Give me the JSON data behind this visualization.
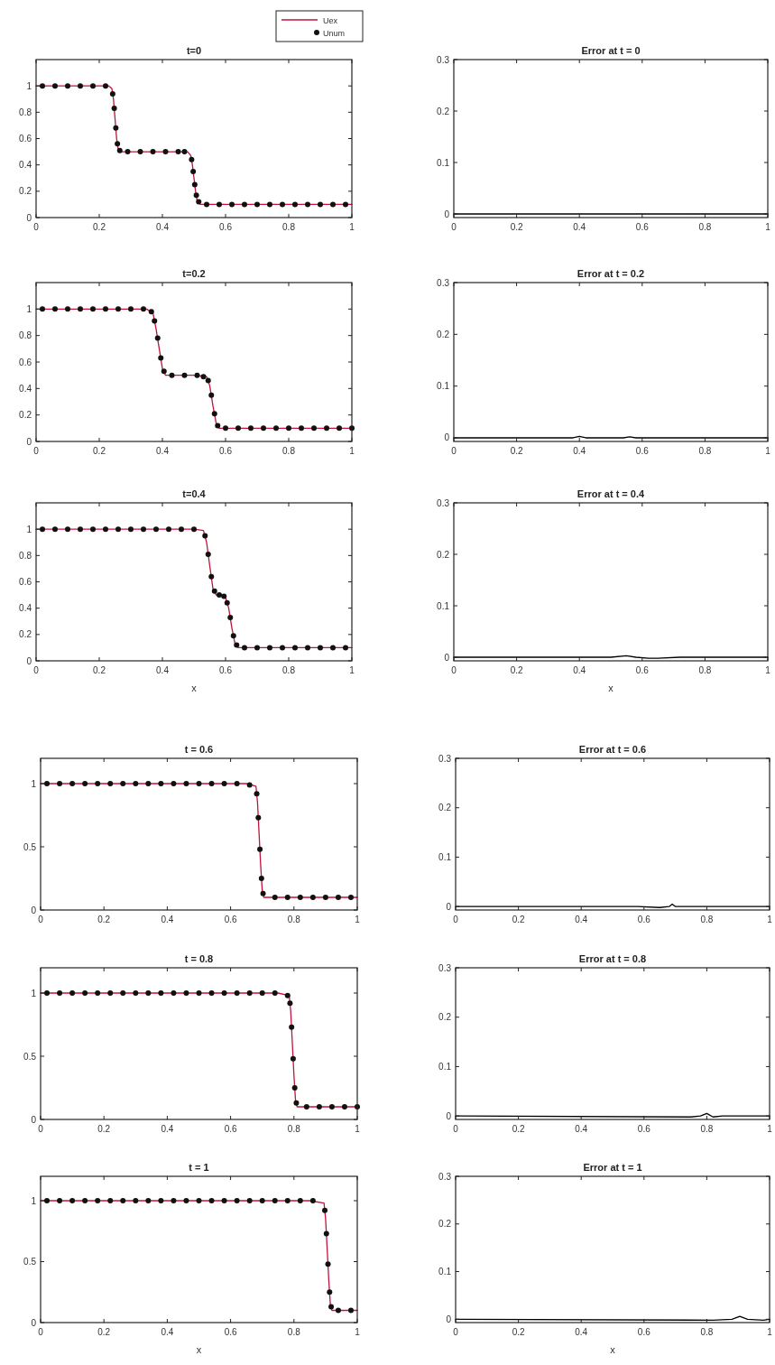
{
  "chart_data": [
    {
      "type": "line",
      "title": "t=0",
      "legend": "top right",
      "xlim": [
        0,
        1
      ],
      "ylim": [
        0,
        1.2
      ],
      "xticks": [
        0,
        0.2,
        0.4,
        0.6,
        0.8,
        1
      ],
      "yticks": [
        0,
        0.2,
        0.4,
        0.6,
        0.8,
        1
      ],
      "x": [
        0,
        0.05,
        0.1,
        0.15,
        0.2,
        0.23,
        0.24,
        0.245,
        0.25,
        0.255,
        0.26,
        0.27,
        0.3,
        0.35,
        0.4,
        0.45,
        0.48,
        0.49,
        0.495,
        0.5,
        0.505,
        0.51,
        0.52,
        0.55,
        0.6,
        0.65,
        0.7,
        0.75,
        0.8,
        0.85,
        0.9,
        0.95,
        1
      ],
      "series": [
        {
          "name": "Uex",
          "color": "#c0143c",
          "values": [
            1,
            1,
            1,
            1,
            1,
            1,
            0.98,
            0.9,
            0.75,
            0.6,
            0.52,
            0.5,
            0.5,
            0.5,
            0.5,
            0.5,
            0.5,
            0.47,
            0.4,
            0.3,
            0.2,
            0.13,
            0.1,
            0.1,
            0.1,
            0.1,
            0.1,
            0.1,
            0.1,
            0.1,
            0.1,
            0.1,
            0.1
          ]
        },
        {
          "name": "Unum",
          "type": "scatter",
          "marker": "circle",
          "color": "#111111",
          "x": [
            0.02,
            0.06,
            0.1,
            0.14,
            0.18,
            0.22,
            0.2425,
            0.2475,
            0.2525,
            0.2575,
            0.265,
            0.29,
            0.33,
            0.37,
            0.41,
            0.45,
            0.47,
            0.4925,
            0.4975,
            0.5025,
            0.5075,
            0.515,
            0.54,
            0.58,
            0.62,
            0.66,
            0.7,
            0.74,
            0.78,
            0.82,
            0.86,
            0.9,
            0.94,
            0.98
          ],
          "values": [
            1,
            1,
            1,
            1,
            1,
            1,
            0.94,
            0.83,
            0.68,
            0.56,
            0.51,
            0.5,
            0.5,
            0.5,
            0.5,
            0.5,
            0.5,
            0.44,
            0.35,
            0.25,
            0.17,
            0.12,
            0.1,
            0.1,
            0.1,
            0.1,
            0.1,
            0.1,
            0.1,
            0.1,
            0.1,
            0.1,
            0.1,
            0.1
          ]
        }
      ]
    },
    {
      "type": "line",
      "title": "Error at t = 0",
      "xlim": [
        0,
        1
      ],
      "ylim": [
        -0.007,
        0.3
      ],
      "xticks": [
        0,
        0.2,
        0.4,
        0.6,
        0.8,
        1
      ],
      "yticks": [
        0,
        0.1,
        0.2,
        0.3
      ],
      "x": [
        0,
        0.25,
        0.5,
        0.75,
        1
      ],
      "series": [
        {
          "color": "#000000",
          "values": [
            0,
            0,
            0,
            0,
            0
          ]
        }
      ]
    },
    {
      "type": "line",
      "title": "t=0.2",
      "xlim": [
        0,
        1
      ],
      "ylim": [
        0,
        1.2
      ],
      "xticks": [
        0,
        0.2,
        0.4,
        0.6,
        0.8,
        1
      ],
      "yticks": [
        0,
        0.2,
        0.4,
        0.6,
        0.8,
        1
      ],
      "x": [
        0,
        0.05,
        0.1,
        0.15,
        0.2,
        0.25,
        0.3,
        0.35,
        0.37,
        0.38,
        0.39,
        0.4,
        0.41,
        0.45,
        0.5,
        0.54,
        0.55,
        0.56,
        0.57,
        0.58,
        0.6,
        0.65,
        0.7,
        0.75,
        0.8,
        0.85,
        0.9,
        0.95,
        1
      ],
      "series": [
        {
          "color": "#c0143c",
          "values": [
            1,
            1,
            1,
            1,
            1,
            1,
            1,
            1,
            0.97,
            0.85,
            0.7,
            0.55,
            0.5,
            0.5,
            0.5,
            0.49,
            0.42,
            0.27,
            0.14,
            0.1,
            0.1,
            0.1,
            0.1,
            0.1,
            0.1,
            0.1,
            0.1,
            0.1,
            0.1
          ]
        },
        {
          "type": "scatter",
          "marker": "circle",
          "color": "#111111",
          "x": [
            0.02,
            0.06,
            0.1,
            0.14,
            0.18,
            0.22,
            0.26,
            0.3,
            0.34,
            0.365,
            0.375,
            0.385,
            0.395,
            0.405,
            0.43,
            0.47,
            0.51,
            0.53,
            0.545,
            0.555,
            0.565,
            0.575,
            0.6,
            0.64,
            0.68,
            0.72,
            0.76,
            0.8,
            0.84,
            0.88,
            0.92,
            0.96,
            1
          ],
          "values": [
            1,
            1,
            1,
            1,
            1,
            1,
            1,
            1,
            1,
            0.98,
            0.91,
            0.78,
            0.63,
            0.53,
            0.5,
            0.5,
            0.5,
            0.49,
            0.46,
            0.35,
            0.21,
            0.12,
            0.1,
            0.1,
            0.1,
            0.1,
            0.1,
            0.1,
            0.1,
            0.1,
            0.1,
            0.1,
            0.1
          ]
        }
      ]
    },
    {
      "type": "line",
      "title": "Error at t = 0.2",
      "xlim": [
        0,
        1
      ],
      "ylim": [
        -0.007,
        0.3
      ],
      "xticks": [
        0,
        0.2,
        0.4,
        0.6,
        0.8,
        1
      ],
      "yticks": [
        0,
        0.1,
        0.2,
        0.3
      ],
      "x": [
        0,
        0.35,
        0.38,
        0.4,
        0.42,
        0.5,
        0.54,
        0.56,
        0.58,
        0.7,
        1
      ],
      "series": [
        {
          "color": "#000000",
          "values": [
            0,
            0,
            0,
            0.003,
            0,
            0,
            0,
            0.002,
            0,
            0,
            0
          ]
        }
      ]
    },
    {
      "type": "line",
      "title": "t=0.4",
      "xlabel": "x",
      "xlim": [
        0,
        1
      ],
      "ylim": [
        0,
        1.2
      ],
      "xticks": [
        0,
        0.2,
        0.4,
        0.6,
        0.8,
        1
      ],
      "yticks": [
        0,
        0.2,
        0.4,
        0.6,
        0.8,
        1
      ],
      "x": [
        0,
        0.05,
        0.1,
        0.15,
        0.2,
        0.25,
        0.3,
        0.35,
        0.4,
        0.45,
        0.5,
        0.53,
        0.54,
        0.55,
        0.56,
        0.57,
        0.59,
        0.6,
        0.61,
        0.62,
        0.63,
        0.64,
        0.65,
        0.7,
        0.75,
        0.8,
        0.85,
        0.9,
        0.95,
        1
      ],
      "series": [
        {
          "color": "#c0143c",
          "values": [
            1,
            1,
            1,
            1,
            1,
            1,
            1,
            1,
            1,
            1,
            1,
            0.99,
            0.9,
            0.72,
            0.55,
            0.5,
            0.5,
            0.48,
            0.4,
            0.25,
            0.13,
            0.1,
            0.1,
            0.1,
            0.1,
            0.1,
            0.1,
            0.1,
            0.1,
            0.1
          ]
        },
        {
          "type": "scatter",
          "marker": "circle",
          "color": "#111111",
          "x": [
            0.02,
            0.06,
            0.1,
            0.14,
            0.18,
            0.22,
            0.26,
            0.3,
            0.34,
            0.38,
            0.42,
            0.46,
            0.5,
            0.535,
            0.545,
            0.555,
            0.565,
            0.58,
            0.595,
            0.605,
            0.615,
            0.625,
            0.635,
            0.66,
            0.7,
            0.74,
            0.78,
            0.82,
            0.86,
            0.9,
            0.94,
            0.98
          ],
          "values": [
            1,
            1,
            1,
            1,
            1,
            1,
            1,
            1,
            1,
            1,
            1,
            1,
            1,
            0.95,
            0.81,
            0.64,
            0.53,
            0.5,
            0.49,
            0.44,
            0.33,
            0.19,
            0.12,
            0.1,
            0.1,
            0.1,
            0.1,
            0.1,
            0.1,
            0.1,
            0.1,
            0.1
          ]
        }
      ]
    },
    {
      "type": "line",
      "title": "Error at t = 0.4",
      "xlabel": "x",
      "xlim": [
        0,
        1
      ],
      "ylim": [
        -0.007,
        0.3
      ],
      "xticks": [
        0,
        0.2,
        0.4,
        0.6,
        0.8,
        1
      ],
      "yticks": [
        0,
        0.1,
        0.2,
        0.3
      ],
      "x": [
        0,
        0.5,
        0.55,
        0.58,
        0.62,
        0.65,
        0.72,
        1
      ],
      "series": [
        {
          "color": "#000000",
          "values": [
            0,
            0,
            0.003,
            0,
            -0.002,
            -0.002,
            0,
            0
          ]
        }
      ]
    },
    {
      "type": "line",
      "title": "t = 0.6",
      "xlim": [
        0,
        1
      ],
      "ylim": [
        0,
        1.2
      ],
      "xticks": [
        0,
        0.2,
        0.4,
        0.6,
        0.8,
        1
      ],
      "yticks": [
        0,
        0.5,
        1
      ],
      "x": [
        0,
        0.1,
        0.2,
        0.3,
        0.4,
        0.5,
        0.6,
        0.65,
        0.68,
        0.685,
        0.69,
        0.695,
        0.7,
        0.705,
        0.75,
        0.8,
        0.85,
        0.9,
        0.95,
        1
      ],
      "series": [
        {
          "color": "#c0143c",
          "values": [
            1,
            1,
            1,
            1,
            1,
            1,
            1,
            1,
            0.98,
            0.85,
            0.6,
            0.35,
            0.15,
            0.1,
            0.1,
            0.1,
            0.1,
            0.1,
            0.1,
            0.1
          ]
        },
        {
          "type": "scatter",
          "marker": "circle",
          "color": "#111111",
          "x": [
            0.02,
            0.06,
            0.1,
            0.14,
            0.18,
            0.22,
            0.26,
            0.3,
            0.34,
            0.38,
            0.42,
            0.46,
            0.5,
            0.54,
            0.58,
            0.62,
            0.66,
            0.6825,
            0.6875,
            0.6925,
            0.6975,
            0.7025,
            0.74,
            0.78,
            0.82,
            0.86,
            0.9,
            0.94,
            0.98
          ],
          "values": [
            1,
            1,
            1,
            1,
            1,
            1,
            1,
            1,
            1,
            1,
            1,
            1,
            1,
            1,
            1,
            1,
            0.99,
            0.92,
            0.73,
            0.48,
            0.25,
            0.13,
            0.1,
            0.1,
            0.1,
            0.1,
            0.1,
            0.1,
            0.1
          ]
        }
      ]
    },
    {
      "type": "line",
      "title": "Error at t = 0.6",
      "xlim": [
        0,
        1
      ],
      "ylim": [
        -0.007,
        0.3
      ],
      "xticks": [
        0,
        0.2,
        0.4,
        0.6,
        0.8,
        1
      ],
      "yticks": [
        0,
        0.1,
        0.2,
        0.3
      ],
      "x": [
        0,
        0.58,
        0.65,
        0.68,
        0.69,
        0.7,
        0.73,
        1
      ],
      "series": [
        {
          "color": "#000000",
          "values": [
            0,
            0,
            -0.002,
            0,
            0.005,
            0,
            0,
            0
          ]
        }
      ]
    },
    {
      "type": "line",
      "title": "t = 0.8",
      "xlim": [
        0,
        1
      ],
      "ylim": [
        0,
        1.2
      ],
      "xticks": [
        0,
        0.2,
        0.4,
        0.6,
        0.8,
        1
      ],
      "yticks": [
        0,
        0.5,
        1
      ],
      "x": [
        0,
        0.1,
        0.2,
        0.3,
        0.4,
        0.5,
        0.6,
        0.7,
        0.75,
        0.785,
        0.79,
        0.795,
        0.8,
        0.805,
        0.81,
        0.85,
        0.9,
        0.95,
        1
      ],
      "series": [
        {
          "color": "#c0143c",
          "values": [
            1,
            1,
            1,
            1,
            1,
            1,
            1,
            1,
            1,
            0.98,
            0.85,
            0.6,
            0.35,
            0.15,
            0.1,
            0.1,
            0.1,
            0.1,
            0.1
          ]
        },
        {
          "type": "scatter",
          "marker": "circle",
          "color": "#111111",
          "x": [
            0.02,
            0.06,
            0.1,
            0.14,
            0.18,
            0.22,
            0.26,
            0.3,
            0.34,
            0.38,
            0.42,
            0.46,
            0.5,
            0.54,
            0.58,
            0.62,
            0.66,
            0.7,
            0.74,
            0.78,
            0.7875,
            0.7925,
            0.7975,
            0.8025,
            0.8075,
            0.84,
            0.88,
            0.92,
            0.96,
            1
          ],
          "values": [
            1,
            1,
            1,
            1,
            1,
            1,
            1,
            1,
            1,
            1,
            1,
            1,
            1,
            1,
            1,
            1,
            1,
            1,
            1,
            0.98,
            0.92,
            0.73,
            0.48,
            0.25,
            0.13,
            0.1,
            0.1,
            0.1,
            0.1,
            0.1
          ]
        }
      ]
    },
    {
      "type": "line",
      "title": "Error at t = 0.8",
      "xlim": [
        0,
        1
      ],
      "ylim": [
        -0.007,
        0.3
      ],
      "xticks": [
        0,
        0.2,
        0.4,
        0.6,
        0.8,
        1
      ],
      "yticks": [
        0,
        0.1,
        0.2,
        0.3
      ],
      "x": [
        0,
        0.75,
        0.78,
        0.8,
        0.82,
        0.85,
        1
      ],
      "series": [
        {
          "color": "#000000",
          "values": [
            0,
            -0.002,
            0,
            0.005,
            -0.002,
            0,
            0
          ]
        }
      ]
    },
    {
      "type": "line",
      "title": "t = 1",
      "xlabel": "x",
      "xlim": [
        0,
        1
      ],
      "ylim": [
        0,
        1.2
      ],
      "xticks": [
        0,
        0.2,
        0.4,
        0.6,
        0.8,
        1
      ],
      "yticks": [
        0,
        0.5,
        1
      ],
      "x": [
        0,
        0.1,
        0.2,
        0.3,
        0.4,
        0.5,
        0.6,
        0.7,
        0.8,
        0.85,
        0.895,
        0.9,
        0.905,
        0.91,
        0.915,
        0.92,
        0.95,
        1
      ],
      "series": [
        {
          "color": "#c0143c",
          "values": [
            1,
            1,
            1,
            1,
            1,
            1,
            1,
            1,
            1,
            1,
            0.98,
            0.85,
            0.6,
            0.35,
            0.15,
            0.1,
            0.1,
            0.1
          ]
        },
        {
          "type": "scatter",
          "marker": "circle",
          "color": "#111111",
          "x": [
            0.02,
            0.06,
            0.1,
            0.14,
            0.18,
            0.22,
            0.26,
            0.3,
            0.34,
            0.38,
            0.42,
            0.46,
            0.5,
            0.54,
            0.58,
            0.62,
            0.66,
            0.7,
            0.74,
            0.78,
            0.82,
            0.86,
            0.8975,
            0.9025,
            0.9075,
            0.9125,
            0.9175,
            0.94,
            0.98
          ],
          "values": [
            1,
            1,
            1,
            1,
            1,
            1,
            1,
            1,
            1,
            1,
            1,
            1,
            1,
            1,
            1,
            1,
            1,
            1,
            1,
            1,
            1,
            1,
            0.92,
            0.73,
            0.48,
            0.25,
            0.13,
            0.1,
            0.1
          ]
        }
      ]
    },
    {
      "type": "line",
      "title": "Error at t = 1",
      "xlabel": "x",
      "xlim": [
        0,
        1
      ],
      "ylim": [
        -0.007,
        0.3
      ],
      "xticks": [
        0,
        0.2,
        0.4,
        0.6,
        0.8,
        1
      ],
      "yticks": [
        0,
        0.1,
        0.2,
        0.3
      ],
      "x": [
        0,
        0.82,
        0.88,
        0.905,
        0.93,
        0.98,
        1
      ],
      "series": [
        {
          "color": "#000000",
          "values": [
            0,
            -0.002,
            0,
            0.006,
            0,
            -0.002,
            0
          ]
        }
      ]
    }
  ]
}
